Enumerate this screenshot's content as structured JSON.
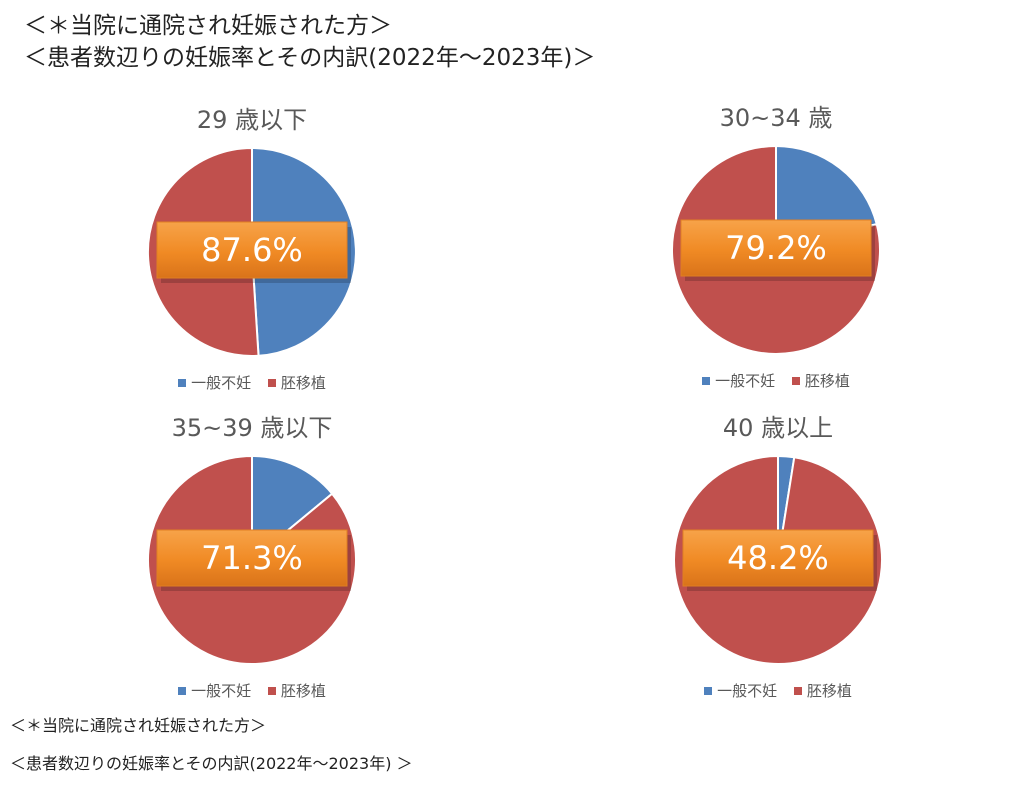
{
  "heading": {
    "line1": "＜＊当院に通院され妊娠された方＞",
    "line2": "＜患者数辺りの妊娠率とその内訳(2022年〜2023年)＞"
  },
  "footnote": {
    "line1": "＜＊当院に通院され妊娠された方＞",
    "line2": "＜患者数辺りの妊娠率とその内訳(2022年〜2023年) ＞"
  },
  "colors": {
    "general_infertility": "#4f81bd",
    "embryo_transfer": "#c0504d",
    "rate_box": "#f08a24"
  },
  "chart_data": [
    {
      "type": "pie",
      "title": "29 歳以下",
      "rate_label": "87.6%",
      "categories": [
        "一般不妊",
        "胚移植"
      ],
      "values": [
        49,
        51
      ],
      "legend": [
        "一般不妊",
        "胚移植"
      ],
      "legend_position": "bottom"
    },
    {
      "type": "pie",
      "title": "30~34 歳",
      "rate_label": "79.2%",
      "categories": [
        "一般不妊",
        "胚移植"
      ],
      "values": [
        21,
        79
      ],
      "legend": [
        "一般不妊",
        "胚移植"
      ],
      "legend_position": "bottom"
    },
    {
      "type": "pie",
      "title": "35~39 歳以下",
      "rate_label": "71.3%",
      "categories": [
        "一般不妊",
        "胚移植"
      ],
      "values": [
        14,
        86
      ],
      "legend": [
        "一般不妊",
        "胚移植"
      ],
      "legend_position": "bottom"
    },
    {
      "type": "pie",
      "title": "40 歳以上",
      "rate_label": "48.2%",
      "categories": [
        "一般不妊",
        "胚移植"
      ],
      "values": [
        2.5,
        97.5
      ],
      "legend": [
        "一般不妊",
        "胚移植"
      ],
      "legend_position": "bottom"
    }
  ]
}
